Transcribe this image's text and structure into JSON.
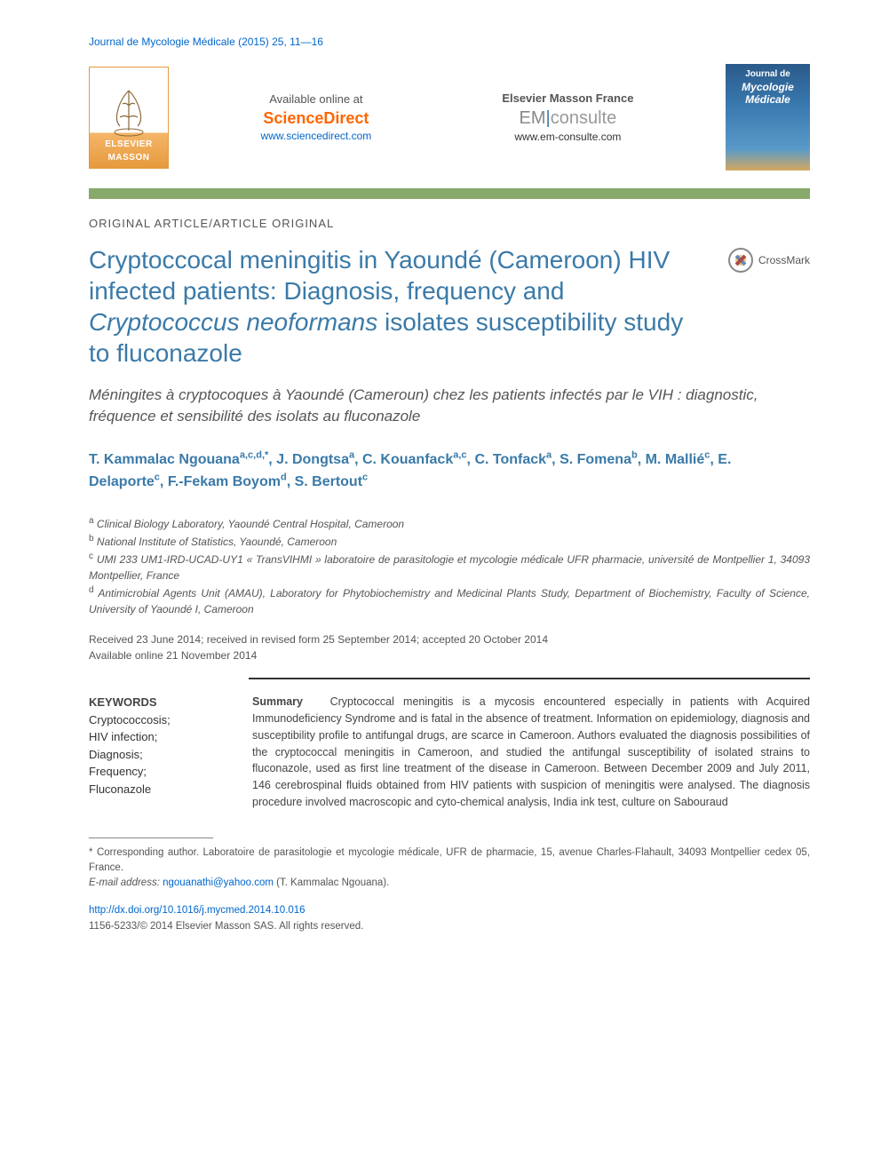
{
  "header": {
    "journal_ref": "Journal de Mycologie Médicale (2015) 25, 11—16",
    "elsevier": "ELSEVIER",
    "masson": "MASSON",
    "available": "Available online at",
    "sciencedirect": "ScienceDirect",
    "sd_url": "www.sciencedirect.com",
    "em_france": "Elsevier Masson France",
    "em_part1": "EM",
    "em_part2": "consulte",
    "em_url": "www.em-consulte.com",
    "cover_line1": "Journal de",
    "cover_line2": "Mycologie",
    "cover_line3": "Médicale",
    "crossmark": "CrossMark"
  },
  "article": {
    "type": "ORIGINAL ARTICLE/ARTICLE ORIGINAL",
    "title_part1": "Cryptoccocal meningitis in Yaoundé (Cameroon) HIV infected patients: Diagnosis, frequency and ",
    "title_italic": "Cryptococcus neoformans",
    "title_part2": " isolates susceptibility study to fluconazole",
    "subtitle": "Méningites à cryptocoques à Yaoundé (Cameroun) chez les patients infectés par le VIH : diagnostic, fréquence et sensibilité des isolats au fluconazole"
  },
  "authors": {
    "list": [
      {
        "name": "T. Kammalac Ngouana",
        "aff": "a,c,d,*"
      },
      {
        "name": "J. Dongtsa",
        "aff": "a"
      },
      {
        "name": "C. Kouanfack",
        "aff": "a,c"
      },
      {
        "name": "C. Tonfack",
        "aff": "a"
      },
      {
        "name": "S. Fomena",
        "aff": "b"
      },
      {
        "name": "M. Mallié",
        "aff": "c"
      },
      {
        "name": "E. Delaporte",
        "aff": "c"
      },
      {
        "name": "F.-Fekam Boyom",
        "aff": "d"
      },
      {
        "name": "S. Bertout",
        "aff": "c"
      }
    ]
  },
  "affiliations": {
    "a": "Clinical Biology Laboratory, Yaoundé Central Hospital, Cameroon",
    "b": "National Institute of Statistics, Yaoundé, Cameroon",
    "c": "UMI 233 UM1-IRD-UCAD-UY1 « TransVIHMI » laboratoire de parasitologie et mycologie médicale UFR pharmacie, université de Montpellier 1, 34093 Montpellier, France",
    "d": "Antimicrobial Agents Unit (AMAU), Laboratory for Phytobiochemistry and Medicinal Plants Study, Department of Biochemistry, Faculty of Science, University of Yaoundé I, Cameroon"
  },
  "dates": {
    "received": "Received 23 June 2014; received in revised form 25 September 2014; accepted 20 October 2014",
    "online": "Available online 21 November 2014"
  },
  "keywords": {
    "title": "KEYWORDS",
    "items": "Cryptococcosis;\nHIV infection;\nDiagnosis;\nFrequency;\nFluconazole"
  },
  "abstract": {
    "label": "Summary",
    "text": "Cryptococcal meningitis is a mycosis encountered especially in patients with Acquired Immunodeficiency Syndrome and is fatal in the absence of treatment. Information on epidemiology, diagnosis and susceptibility profile to antifungal drugs, are scarce in Cameroon. Authors evaluated the diagnosis possibilities of the cryptococcal meningitis in Cameroon, and studied the antifungal susceptibility of isolated strains to fluconazole, used as first line treatment of the disease in Cameroon. Between December 2009 and July 2011, 146 cerebrospinal fluids obtained from HIV patients with suspicion of meningitis were analysed. The diagnosis procedure involved macroscopic and cyto-chemical analysis, India ink test, culture on Sabouraud"
  },
  "footnotes": {
    "corresponding": "* Corresponding author. Laboratoire de parasitologie et mycologie médicale, UFR de pharmacie, 15, avenue Charles-Flahault, 34093 Montpellier cedex 05, France.",
    "email_label": "E-mail address:",
    "email": "ngouanathi@yahoo.com",
    "email_name": " (T. Kammalac Ngouana)."
  },
  "doi": {
    "url": "http://dx.doi.org/10.1016/j.mycmed.2014.10.016",
    "issn": "1156-5233/© 2014 Elsevier Masson SAS. All rights reserved."
  },
  "colors": {
    "link_blue": "#0066cc",
    "title_blue": "#3a7aa8",
    "orange": "#ff6600",
    "olive_bar": "#87a96b"
  }
}
